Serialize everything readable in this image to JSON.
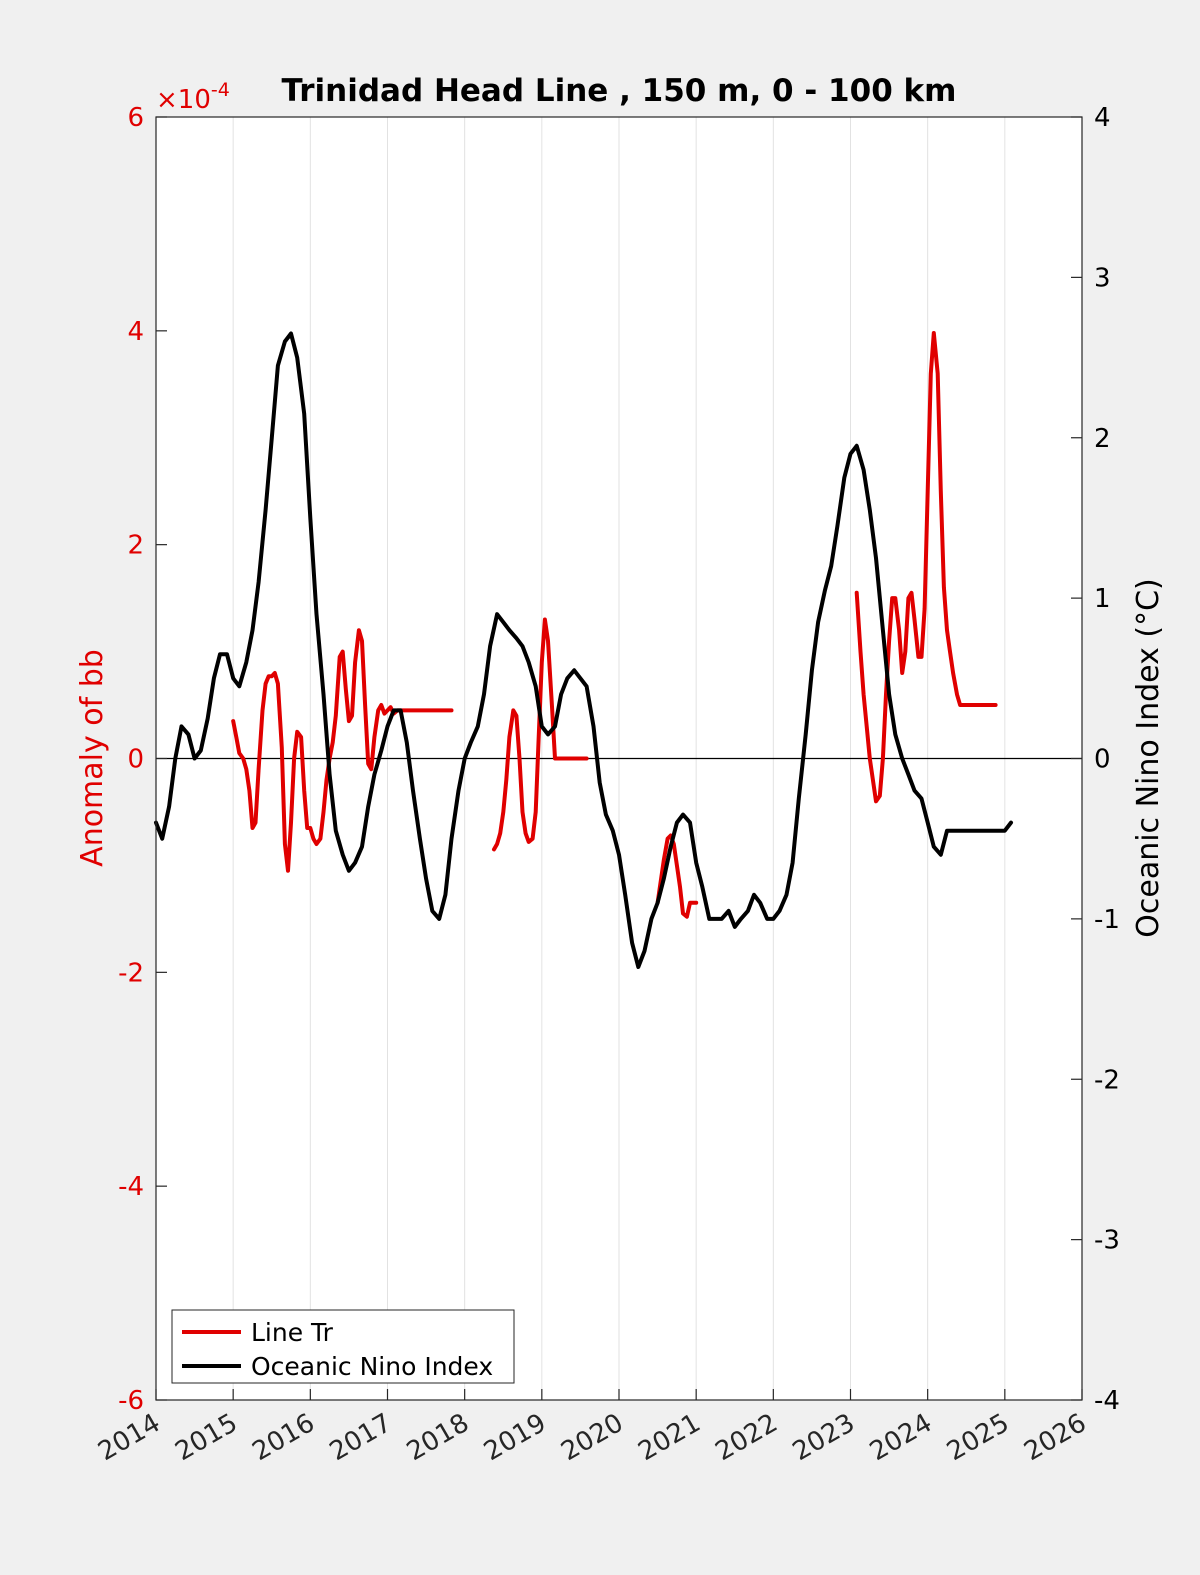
{
  "chart_data": {
    "type": "line",
    "title": "Trinidad Head Line , 150 m, 0 - 100 km",
    "ylabel_left": "Anomaly of bb",
    "ylabel_right": "Oceanic Nino Index (°C)",
    "xlabel": "",
    "xlim": [
      2014,
      2026
    ],
    "ylim_left": [
      -6,
      6
    ],
    "ylim_right": [
      -4,
      4
    ],
    "left_multiplier": "×10",
    "left_multiplier_exp": "-4",
    "x_ticks": [
      "2014",
      "2015",
      "2016",
      "2017",
      "2018",
      "2019",
      "2020",
      "2021",
      "2022",
      "2023",
      "2024",
      "2025",
      "2026"
    ],
    "y_left_ticks": [
      "6",
      "4",
      "2",
      "0",
      "-2",
      "-4",
      "-6"
    ],
    "y_right_ticks": [
      "4",
      "3",
      "2",
      "1",
      "0",
      "-1",
      "-2",
      "-3",
      "-4"
    ],
    "colors": {
      "left_axis": "#e00000",
      "line_tr": "#e00000",
      "oni": "#000000",
      "zero_line": "#000000"
    },
    "grid_vertical": true,
    "zero_reference_line": true,
    "legend": {
      "placement": "bottom-left",
      "entries": [
        "Line Tr",
        "Oceanic Nino Index"
      ]
    },
    "series": [
      {
        "name": "Line Tr",
        "axis": "left",
        "unit_scale": "x10^-4",
        "segments": [
          {
            "x": [
              2015.0,
              2015.04,
              2015.08,
              2015.13,
              2015.17,
              2015.21,
              2015.25,
              2015.29,
              2015.33,
              2015.38,
              2015.42,
              2015.46,
              2015.5,
              2015.54,
              2015.58,
              2015.63,
              2015.67,
              2015.71,
              2015.75,
              2015.79,
              2015.83,
              2015.88,
              2015.92,
              2015.96,
              2016.0,
              2016.04,
              2016.08,
              2016.13,
              2016.17,
              2016.21,
              2016.25,
              2016.29,
              2016.33,
              2016.38,
              2016.42,
              2016.46,
              2016.5,
              2016.54,
              2016.58,
              2016.63,
              2016.67,
              2016.71,
              2016.75,
              2016.79,
              2016.83,
              2016.88,
              2016.92,
              2016.96,
              2017.0,
              2017.04,
              2017.08,
              2017.13,
              2017.17,
              2017.21,
              2017.25,
              2017.29,
              2017.33,
              2017.38,
              2017.42,
              2017.46,
              2017.5,
              2017.54,
              2017.58,
              2017.63,
              2017.67,
              2017.71,
              2017.75,
              2017.79,
              2017.83
            ],
            "y": [
              0.35,
              0.2,
              0.05,
              0.0,
              -0.1,
              -0.3,
              -0.65,
              -0.6,
              -0.1,
              0.45,
              0.7,
              0.77,
              0.77,
              0.8,
              0.7,
              0.1,
              -0.8,
              -1.05,
              -0.6,
              0.0,
              0.25,
              0.2,
              -0.3,
              -0.65,
              -0.65,
              -0.75,
              -0.8,
              -0.75,
              -0.5,
              -0.2,
              0.0,
              0.15,
              0.4,
              0.95,
              1.0,
              0.65,
              0.35,
              0.4,
              0.9,
              1.2,
              1.1,
              0.5,
              -0.05,
              -0.1,
              0.2,
              0.45,
              0.5,
              0.42,
              0.45,
              0.48,
              0.42,
              0.45,
              0.45,
              0.45,
              0.45,
              0.45,
              0.45,
              0.45,
              0.45,
              0.45,
              0.45,
              0.45,
              0.45,
              0.45,
              0.45,
              0.45,
              0.45,
              0.45,
              0.45
            ]
          },
          {
            "x": [
              2018.38,
              2018.42,
              2018.46,
              2018.5,
              2018.54,
              2018.58,
              2018.63,
              2018.67,
              2018.71,
              2018.75,
              2018.79,
              2018.83,
              2018.88,
              2018.92,
              2018.96,
              2019.0,
              2019.04,
              2019.08,
              2019.13,
              2019.17,
              2019.21,
              2019.25,
              2019.29,
              2019.33,
              2019.38,
              2019.42,
              2019.46,
              2019.5,
              2019.54,
              2019.58
            ],
            "y": [
              -0.85,
              -0.8,
              -0.7,
              -0.5,
              -0.2,
              0.2,
              0.45,
              0.4,
              0.0,
              -0.5,
              -0.7,
              -0.78,
              -0.75,
              -0.5,
              0.2,
              0.9,
              1.3,
              1.1,
              0.5,
              0.0,
              0.0,
              0.0,
              0.0,
              0.0,
              0.0,
              0.0,
              0.0,
              0.0,
              0.0,
              0.0
            ]
          },
          {
            "x": [
              2020.5,
              2020.54,
              2020.58,
              2020.63,
              2020.67,
              2020.71,
              2020.75,
              2020.79,
              2020.83,
              2020.88,
              2020.92,
              2020.96,
              2021.0
            ],
            "y": [
              -1.35,
              -1.15,
              -0.95,
              -0.75,
              -0.72,
              -0.8,
              -1.0,
              -1.2,
              -1.45,
              -1.48,
              -1.35,
              -1.35,
              -1.35
            ]
          },
          {
            "x": [
              2023.08,
              2023.13,
              2023.17,
              2023.21,
              2023.25,
              2023.29,
              2023.33,
              2023.38,
              2023.42,
              2023.46,
              2023.5,
              2023.54,
              2023.58,
              2023.63,
              2023.67,
              2023.71,
              2023.75,
              2023.79,
              2023.83,
              2023.88,
              2023.92,
              2023.96,
              2024.0,
              2024.04,
              2024.08,
              2024.13,
              2024.17,
              2024.21,
              2024.25,
              2024.29,
              2024.33,
              2024.38,
              2024.42,
              2024.46,
              2024.5,
              2024.54,
              2024.58,
              2024.63,
              2024.67,
              2024.71,
              2024.75,
              2024.79,
              2024.83,
              2024.88
            ],
            "y": [
              1.55,
              1.0,
              0.6,
              0.3,
              0.0,
              -0.2,
              -0.4,
              -0.35,
              0.0,
              0.6,
              1.1,
              1.5,
              1.5,
              1.2,
              0.8,
              1.0,
              1.5,
              1.55,
              1.3,
              0.95,
              0.95,
              1.4,
              2.5,
              3.6,
              3.98,
              3.6,
              2.5,
              1.6,
              1.2,
              1.0,
              0.8,
              0.6,
              0.5,
              0.5,
              0.5,
              0.5,
              0.5,
              0.5,
              0.5,
              0.5,
              0.5,
              0.5,
              0.5,
              0.5
            ]
          }
        ]
      },
      {
        "name": "Oceanic Nino Index",
        "axis": "right",
        "segments": [
          {
            "x": [
              2014.0,
              2014.08,
              2014.17,
              2014.25,
              2014.33,
              2014.42,
              2014.5,
              2014.58,
              2014.67,
              2014.75,
              2014.83,
              2014.92,
              2015.0,
              2015.08,
              2015.17,
              2015.25,
              2015.33,
              2015.42,
              2015.5,
              2015.58,
              2015.67,
              2015.75,
              2015.83,
              2015.92,
              2016.0,
              2016.08,
              2016.17,
              2016.25,
              2016.33,
              2016.42,
              2016.5,
              2016.58,
              2016.67,
              2016.75,
              2016.83,
              2016.92,
              2017.0,
              2017.08,
              2017.17,
              2017.25,
              2017.33,
              2017.42,
              2017.5,
              2017.58,
              2017.67,
              2017.75,
              2017.83,
              2017.92,
              2018.0,
              2018.08,
              2018.17,
              2018.25,
              2018.33,
              2018.42,
              2018.5,
              2018.58,
              2018.67,
              2018.75,
              2018.83,
              2018.92,
              2019.0,
              2019.08,
              2019.17,
              2019.25,
              2019.33,
              2019.42,
              2019.5,
              2019.58,
              2019.67,
              2019.75,
              2019.83,
              2019.92,
              2020.0,
              2020.08,
              2020.17,
              2020.25,
              2020.33,
              2020.42,
              2020.5,
              2020.58,
              2020.67,
              2020.75,
              2020.83,
              2020.92,
              2021.0,
              2021.08,
              2021.17,
              2021.25,
              2021.33,
              2021.42,
              2021.5,
              2021.58,
              2021.67,
              2021.75,
              2021.83,
              2021.92,
              2022.0,
              2022.08,
              2022.17,
              2022.25,
              2022.33,
              2022.42,
              2022.5,
              2022.58,
              2022.67,
              2022.75,
              2022.83,
              2022.92,
              2023.0,
              2023.08,
              2023.17,
              2023.25,
              2023.33,
              2023.42,
              2023.5,
              2023.58,
              2023.67,
              2023.75,
              2023.83,
              2023.92,
              2024.0,
              2024.08,
              2024.17,
              2024.25,
              2024.33,
              2024.42,
              2024.5,
              2024.58,
              2024.67,
              2024.75,
              2024.83,
              2024.92,
              2025.0,
              2025.08
            ],
            "y": [
              -0.4,
              -0.5,
              -0.3,
              0.0,
              0.2,
              0.15,
              0.0,
              0.05,
              0.25,
              0.5,
              0.65,
              0.65,
              0.5,
              0.45,
              0.6,
              0.8,
              1.1,
              1.55,
              2.0,
              2.45,
              2.6,
              2.65,
              2.5,
              2.15,
              1.5,
              0.9,
              0.4,
              -0.1,
              -0.45,
              -0.6,
              -0.7,
              -0.65,
              -0.55,
              -0.3,
              -0.1,
              0.05,
              0.2,
              0.3,
              0.3,
              0.1,
              -0.2,
              -0.5,
              -0.75,
              -0.95,
              -1.0,
              -0.85,
              -0.5,
              -0.2,
              0.0,
              0.1,
              0.2,
              0.4,
              0.7,
              0.9,
              0.85,
              0.8,
              0.75,
              0.7,
              0.6,
              0.45,
              0.2,
              0.15,
              0.2,
              0.4,
              0.5,
              0.55,
              0.5,
              0.45,
              0.2,
              -0.15,
              -0.35,
              -0.45,
              -0.6,
              -0.85,
              -1.15,
              -1.3,
              -1.2,
              -1.0,
              -0.9,
              -0.75,
              -0.55,
              -0.4,
              -0.35,
              -0.4,
              -0.65,
              -0.8,
              -1.0,
              -1.0,
              -1.0,
              -0.95,
              -1.05,
              -1.0,
              -0.95,
              -0.85,
              -0.9,
              -1.0,
              -1.0,
              -0.95,
              -0.85,
              -0.65,
              -0.25,
              0.15,
              0.55,
              0.85,
              1.05,
              1.2,
              1.45,
              1.75,
              1.9,
              1.95,
              1.8,
              1.55,
              1.25,
              0.8,
              0.4,
              0.15,
              0.0,
              -0.1,
              -0.2,
              -0.25,
              -0.4,
              -0.55,
              -0.6,
              -0.45,
              -0.45,
              -0.45,
              -0.45,
              -0.45,
              -0.45,
              -0.45,
              -0.45,
              -0.45,
              -0.45,
              -0.4
            ]
          }
        ]
      }
    ]
  }
}
